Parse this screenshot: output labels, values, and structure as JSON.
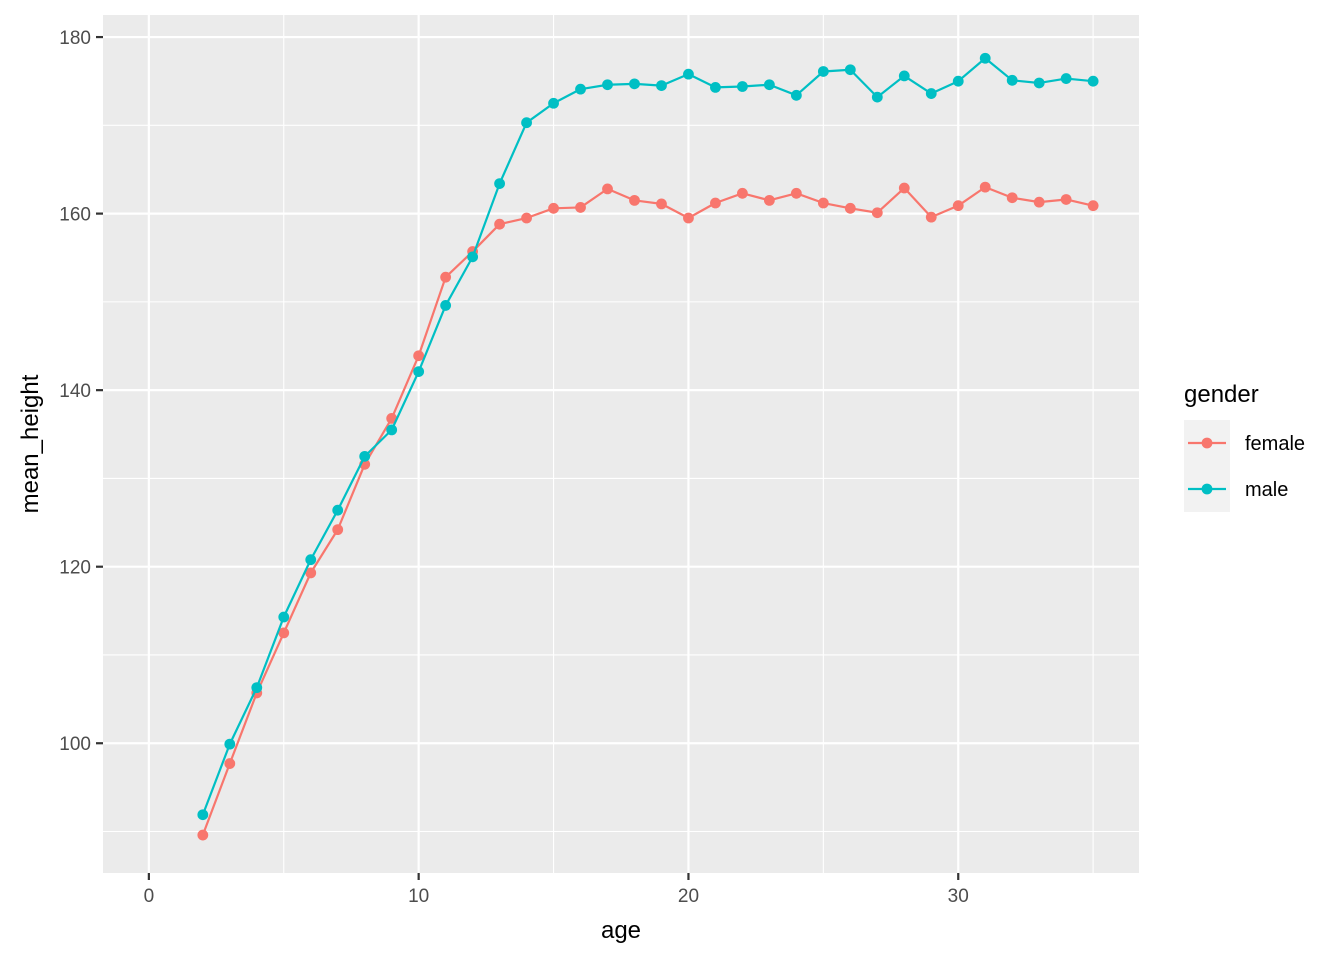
{
  "chart_data": {
    "type": "line",
    "xlabel": "age",
    "ylabel": "mean_height",
    "xlim": [
      -1.7,
      36.7
    ],
    "ylim": [
      85.3,
      182.5
    ],
    "x_ticks": [
      0,
      10,
      20,
      30
    ],
    "y_ticks": [
      100,
      120,
      140,
      160,
      180
    ],
    "grid": true,
    "legend": {
      "title": "gender",
      "position": "right"
    },
    "series": [
      {
        "name": "female",
        "color": "#F8766D",
        "x": [
          2,
          3,
          4,
          5,
          6,
          7,
          8,
          9,
          10,
          11,
          12,
          13,
          14,
          15,
          16,
          17,
          18,
          19,
          20,
          21,
          22,
          23,
          24,
          25,
          26,
          27,
          28,
          29,
          30,
          31,
          32,
          33,
          34,
          35
        ],
        "y": [
          89.6,
          97.7,
          105.7,
          112.5,
          119.3,
          124.2,
          131.6,
          136.8,
          143.9,
          152.8,
          155.7,
          158.8,
          159.5,
          160.6,
          160.7,
          162.8,
          161.5,
          161.1,
          159.5,
          161.2,
          162.3,
          161.5,
          162.3,
          161.2,
          160.6,
          160.1,
          162.9,
          159.6,
          160.9,
          163.0,
          161.8,
          161.3,
          161.6,
          160.9
        ]
      },
      {
        "name": "male",
        "color": "#00BFC4",
        "x": [
          2,
          3,
          4,
          5,
          6,
          7,
          8,
          9,
          10,
          11,
          12,
          13,
          14,
          15,
          16,
          17,
          18,
          19,
          20,
          21,
          22,
          23,
          24,
          25,
          26,
          27,
          28,
          29,
          30,
          31,
          32,
          33,
          34,
          35
        ],
        "y": [
          91.9,
          99.9,
          106.3,
          114.3,
          120.8,
          126.4,
          132.5,
          135.5,
          142.1,
          149.6,
          155.1,
          163.4,
          170.3,
          172.5,
          174.1,
          174.6,
          174.7,
          174.5,
          175.8,
          174.3,
          174.4,
          174.6,
          173.4,
          176.1,
          176.3,
          173.2,
          175.6,
          173.6,
          175.0,
          177.6,
          175.1,
          174.8,
          175.3,
          175.0
        ]
      }
    ]
  }
}
